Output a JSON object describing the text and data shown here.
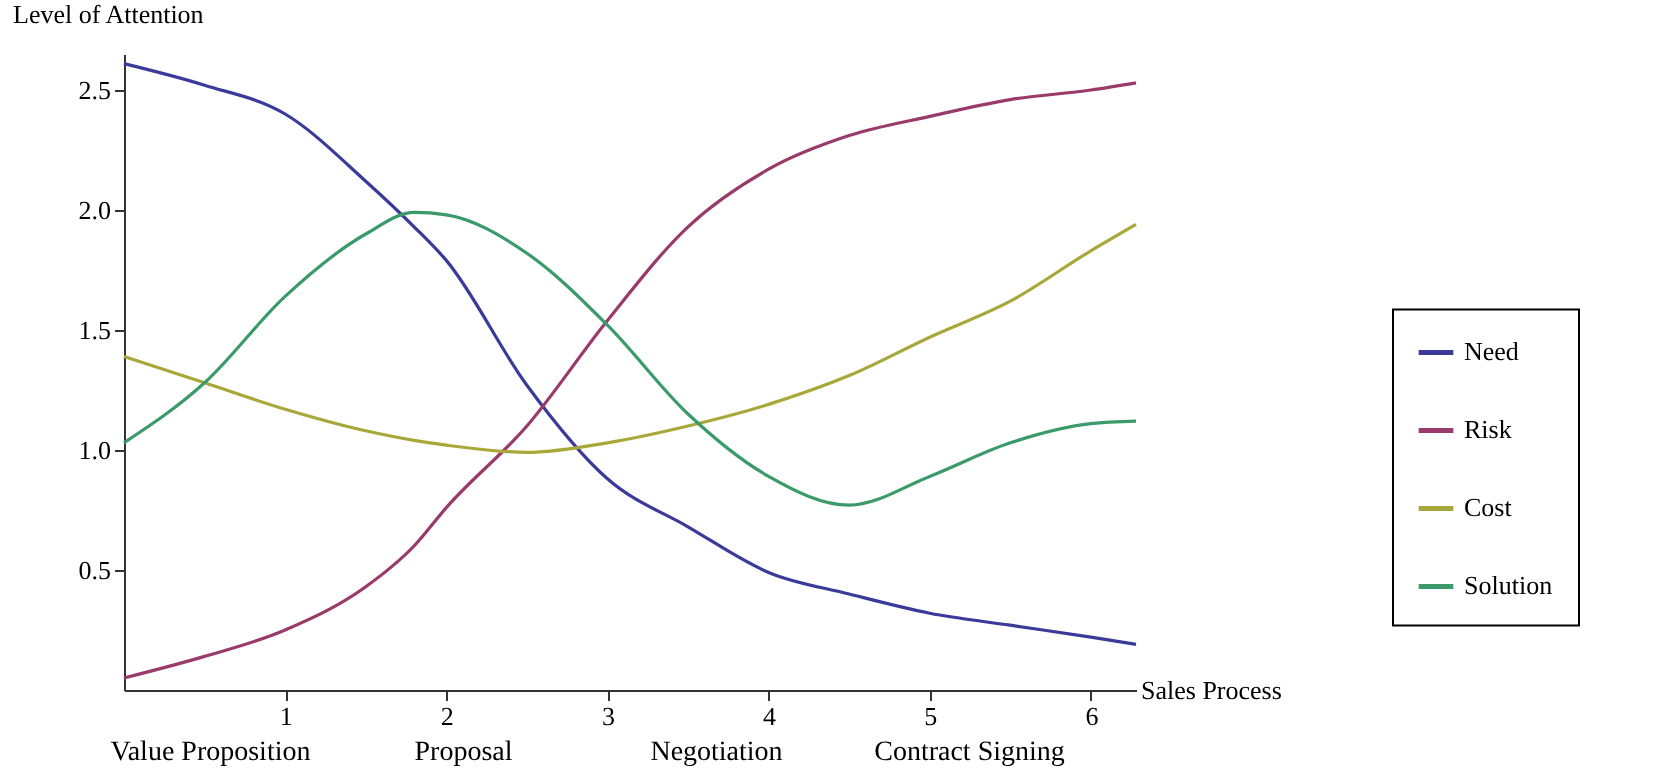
{
  "chart_data": {
    "type": "line",
    "xlabel": "Sales Process",
    "ylabel": "Level of Attention",
    "x": [
      0,
      0.5,
      1,
      1.5,
      1.8,
      2,
      2.5,
      3,
      3.5,
      4,
      4.5,
      5,
      5.5,
      6,
      6.28
    ],
    "series": [
      {
        "name": "Need",
        "color": "#3a3a9a",
        "values": [
          2.61,
          2.52,
          2.4,
          2.12,
          1.93,
          1.79,
          1.27,
          0.88,
          0.68,
          0.49,
          0.4,
          0.32,
          0.27,
          0.22,
          0.19
        ]
      },
      {
        "name": "Risk",
        "color": "#9a3a6a",
        "values": [
          0.05,
          0.14,
          0.25,
          0.43,
          0.6,
          0.76,
          1.1,
          1.54,
          1.93,
          2.17,
          2.31,
          2.39,
          2.46,
          2.5,
          2.53
        ]
      },
      {
        "name": "Cost",
        "color": "#a8a83a",
        "values": [
          1.39,
          1.28,
          1.17,
          1.08,
          1.04,
          1.02,
          0.99,
          1.03,
          1.1,
          1.19,
          1.31,
          1.47,
          1.62,
          1.83,
          1.94
        ]
      },
      {
        "name": "Solution",
        "color": "#3a9a6a",
        "values": [
          1.03,
          1.28,
          1.64,
          1.9,
          1.99,
          1.98,
          1.82,
          1.52,
          1.15,
          0.89,
          0.77,
          0.89,
          1.03,
          1.11,
          1.12
        ]
      }
    ],
    "xlim": [
      0,
      6.28
    ],
    "ylim": [
      0,
      2.65
    ],
    "xticks": [
      1,
      2,
      3,
      4,
      5,
      6
    ],
    "yticks": [
      0.5,
      {
        "value": 1,
        "label": "1.0"
      },
      1.5,
      {
        "value": 2,
        "label": "2.0"
      },
      2.5
    ],
    "legend": "right",
    "annotations": [
      "Value Proposition",
      "Proposal",
      "Negotiation",
      "Contract Signing"
    ]
  }
}
